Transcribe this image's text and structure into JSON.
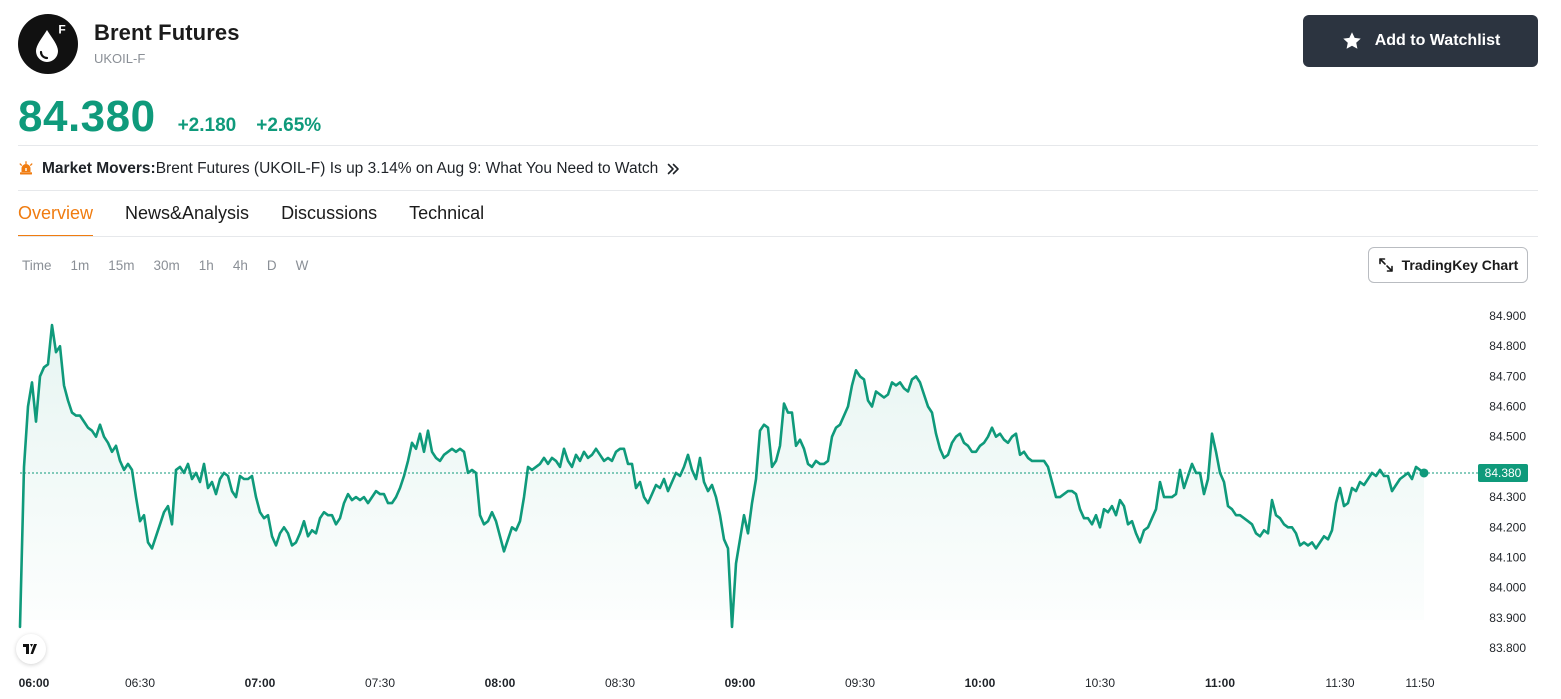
{
  "header": {
    "logo_letter": "F",
    "title": "Brent Futures",
    "ticker": "UKOIL-F",
    "watchlist_label": "Add to Watchlist"
  },
  "quote": {
    "price": "84.380",
    "change": "+2.180",
    "change_pct": "+2.65%"
  },
  "movers": {
    "label": "Market Movers:",
    "text": "Brent Futures (UKOIL-F) Is up 3.14% on Aug 9: What You Need to Watch"
  },
  "tabs": [
    {
      "label": "Overview",
      "active": true
    },
    {
      "label": "News&Analysis",
      "active": false
    },
    {
      "label": "Discussions",
      "active": false
    },
    {
      "label": "Technical",
      "active": false
    }
  ],
  "intervals": [
    "Time",
    "1m",
    "15m",
    "30m",
    "1h",
    "4h",
    "D",
    "W"
  ],
  "chart_button_label": "TradingKey Chart",
  "colors": {
    "accent_green": "#0f9a7b",
    "tab_active": "#f07c10",
    "button_dark": "#2c3440"
  },
  "chart_data": {
    "type": "area",
    "last_value": 84.38,
    "last_value_label": "84.380",
    "ylim": [
      83.8,
      84.9
    ],
    "y_ticks": [
      "84.900",
      "84.800",
      "84.700",
      "84.600",
      "84.500",
      "84.400",
      "84.300",
      "84.200",
      "84.100",
      "84.000",
      "83.900",
      "83.800"
    ],
    "x_ticks": [
      {
        "label": "06:00",
        "t": 0,
        "major": true
      },
      {
        "label": "06:30",
        "t": 30,
        "major": false
      },
      {
        "label": "07:00",
        "t": 60,
        "major": true
      },
      {
        "label": "07:30",
        "t": 90,
        "major": false
      },
      {
        "label": "08:00",
        "t": 120,
        "major": true
      },
      {
        "label": "08:30",
        "t": 150,
        "major": false
      },
      {
        "label": "09:00",
        "t": 180,
        "major": true
      },
      {
        "label": "09:30",
        "t": 210,
        "major": false
      },
      {
        "label": "10:00",
        "t": 240,
        "major": true
      },
      {
        "label": "10:30",
        "t": 270,
        "major": false
      },
      {
        "label": "11:00",
        "t": 300,
        "major": true
      },
      {
        "label": "11:30",
        "t": 330,
        "major": false
      },
      {
        "label": "11:50",
        "t": 350,
        "major": false
      }
    ],
    "x_range_minutes": [
      0,
      372
    ],
    "points": [
      [
        0,
        83.87
      ],
      [
        1,
        84.4
      ],
      [
        2,
        84.6
      ],
      [
        3,
        84.68
      ],
      [
        4,
        84.55
      ],
      [
        5,
        84.7
      ],
      [
        6,
        84.73
      ],
      [
        7,
        84.74
      ],
      [
        8,
        84.87
      ],
      [
        9,
        84.78
      ],
      [
        10,
        84.8
      ],
      [
        11,
        84.67
      ],
      [
        12,
        84.62
      ],
      [
        13,
        84.58
      ],
      [
        14,
        84.57
      ],
      [
        15,
        84.57
      ],
      [
        16,
        84.55
      ],
      [
        17,
        84.53
      ],
      [
        18,
        84.52
      ],
      [
        19,
        84.5
      ],
      [
        20,
        84.54
      ],
      [
        21,
        84.5
      ],
      [
        22,
        84.48
      ],
      [
        23,
        84.45
      ],
      [
        24,
        84.47
      ],
      [
        25,
        84.42
      ],
      [
        26,
        84.39
      ],
      [
        27,
        84.41
      ],
      [
        28,
        84.39
      ],
      [
        29,
        84.3
      ],
      [
        30,
        84.22
      ],
      [
        31,
        84.24
      ],
      [
        32,
        84.15
      ],
      [
        33,
        84.13
      ],
      [
        34,
        84.17
      ],
      [
        35,
        84.21
      ],
      [
        36,
        84.25
      ],
      [
        37,
        84.27
      ],
      [
        38,
        84.21
      ],
      [
        39,
        84.39
      ],
      [
        40,
        84.4
      ],
      [
        41,
        84.38
      ],
      [
        42,
        84.41
      ],
      [
        43,
        84.36
      ],
      [
        44,
        84.38
      ],
      [
        45,
        84.35
      ],
      [
        46,
        84.41
      ],
      [
        47,
        84.33
      ],
      [
        48,
        84.35
      ],
      [
        49,
        84.31
      ],
      [
        50,
        84.36
      ],
      [
        51,
        84.38
      ],
      [
        52,
        84.37
      ],
      [
        53,
        84.32
      ],
      [
        54,
        84.3
      ],
      [
        55,
        84.37
      ],
      [
        56,
        84.36
      ],
      [
        57,
        84.36
      ],
      [
        58,
        84.37
      ],
      [
        59,
        84.3
      ],
      [
        60,
        84.25
      ],
      [
        61,
        84.23
      ],
      [
        62,
        84.24
      ],
      [
        63,
        84.17
      ],
      [
        64,
        84.14
      ],
      [
        65,
        84.18
      ],
      [
        66,
        84.2
      ],
      [
        67,
        84.18
      ],
      [
        68,
        84.14
      ],
      [
        69,
        84.15
      ],
      [
        70,
        84.18
      ],
      [
        71,
        84.22
      ],
      [
        72,
        84.17
      ],
      [
        73,
        84.19
      ],
      [
        74,
        84.18
      ],
      [
        75,
        84.23
      ],
      [
        76,
        84.25
      ],
      [
        77,
        84.24
      ],
      [
        78,
        84.24
      ],
      [
        79,
        84.21
      ],
      [
        80,
        84.23
      ],
      [
        81,
        84.28
      ],
      [
        82,
        84.31
      ],
      [
        83,
        84.29
      ],
      [
        84,
        84.3
      ],
      [
        85,
        84.29
      ],
      [
        86,
        84.3
      ],
      [
        87,
        84.28
      ],
      [
        88,
        84.3
      ],
      [
        89,
        84.32
      ],
      [
        90,
        84.31
      ],
      [
        91,
        84.31
      ],
      [
        92,
        84.28
      ],
      [
        93,
        84.28
      ],
      [
        94,
        84.3
      ],
      [
        95,
        84.33
      ],
      [
        96,
        84.37
      ],
      [
        97,
        84.42
      ],
      [
        98,
        84.48
      ],
      [
        99,
        84.46
      ],
      [
        100,
        84.51
      ],
      [
        101,
        84.45
      ],
      [
        102,
        84.52
      ],
      [
        103,
        84.45
      ],
      [
        104,
        84.43
      ],
      [
        105,
        84.42
      ],
      [
        106,
        84.44
      ],
      [
        107,
        84.45
      ],
      [
        108,
        84.46
      ],
      [
        109,
        84.45
      ],
      [
        110,
        84.46
      ],
      [
        111,
        84.45
      ],
      [
        112,
        84.38
      ],
      [
        113,
        84.39
      ],
      [
        114,
        84.38
      ],
      [
        115,
        84.24
      ],
      [
        116,
        84.21
      ],
      [
        117,
        84.22
      ],
      [
        118,
        84.25
      ],
      [
        119,
        84.22
      ],
      [
        120,
        84.17
      ],
      [
        121,
        84.12
      ],
      [
        122,
        84.16
      ],
      [
        123,
        84.2
      ],
      [
        124,
        84.19
      ],
      [
        125,
        84.22
      ],
      [
        126,
        84.3
      ],
      [
        127,
        84.4
      ],
      [
        128,
        84.39
      ],
      [
        129,
        84.4
      ],
      [
        130,
        84.41
      ],
      [
        131,
        84.43
      ],
      [
        132,
        84.41
      ],
      [
        133,
        84.43
      ],
      [
        134,
        84.42
      ],
      [
        135,
        84.4
      ],
      [
        136,
        84.46
      ],
      [
        137,
        84.42
      ],
      [
        138,
        84.4
      ],
      [
        139,
        84.44
      ],
      [
        140,
        84.42
      ],
      [
        141,
        84.45
      ],
      [
        142,
        84.43
      ],
      [
        143,
        84.44
      ],
      [
        144,
        84.46
      ],
      [
        145,
        84.44
      ],
      [
        146,
        84.42
      ],
      [
        147,
        84.43
      ],
      [
        148,
        84.42
      ],
      [
        149,
        84.45
      ],
      [
        150,
        84.46
      ],
      [
        151,
        84.46
      ],
      [
        152,
        84.41
      ],
      [
        153,
        84.41
      ],
      [
        154,
        84.33
      ],
      [
        155,
        84.35
      ],
      [
        156,
        84.3
      ],
      [
        157,
        84.28
      ],
      [
        158,
        84.31
      ],
      [
        159,
        84.34
      ],
      [
        160,
        84.33
      ],
      [
        161,
        84.36
      ],
      [
        162,
        84.32
      ],
      [
        163,
        84.35
      ],
      [
        164,
        84.38
      ],
      [
        165,
        84.37
      ],
      [
        166,
        84.4
      ],
      [
        167,
        84.44
      ],
      [
        168,
        84.39
      ],
      [
        169,
        84.36
      ],
      [
        170,
        84.43
      ],
      [
        171,
        84.35
      ],
      [
        172,
        84.32
      ],
      [
        173,
        84.34
      ],
      [
        174,
        84.3
      ],
      [
        175,
        84.24
      ],
      [
        176,
        84.16
      ],
      [
        177,
        84.13
      ],
      [
        178,
        83.87
      ],
      [
        179,
        84.08
      ],
      [
        180,
        84.16
      ],
      [
        181,
        84.24
      ],
      [
        182,
        84.18
      ],
      [
        183,
        84.28
      ],
      [
        184,
        84.36
      ],
      [
        185,
        84.52
      ],
      [
        186,
        84.54
      ],
      [
        187,
        84.53
      ],
      [
        188,
        84.4
      ],
      [
        189,
        84.42
      ],
      [
        190,
        84.47
      ],
      [
        191,
        84.61
      ],
      [
        192,
        84.58
      ],
      [
        193,
        84.58
      ],
      [
        194,
        84.47
      ],
      [
        195,
        84.49
      ],
      [
        196,
        84.46
      ],
      [
        197,
        84.41
      ],
      [
        198,
        84.4
      ],
      [
        199,
        84.42
      ],
      [
        200,
        84.41
      ],
      [
        201,
        84.41
      ],
      [
        202,
        84.42
      ],
      [
        203,
        84.5
      ],
      [
        204,
        84.53
      ],
      [
        205,
        84.54
      ],
      [
        206,
        84.57
      ],
      [
        207,
        84.6
      ],
      [
        208,
        84.67
      ],
      [
        209,
        84.72
      ],
      [
        210,
        84.7
      ],
      [
        211,
        84.69
      ],
      [
        212,
        84.62
      ],
      [
        213,
        84.6
      ],
      [
        214,
        84.65
      ],
      [
        215,
        84.64
      ],
      [
        216,
        84.63
      ],
      [
        217,
        84.64
      ],
      [
        218,
        84.68
      ],
      [
        219,
        84.67
      ],
      [
        220,
        84.68
      ],
      [
        221,
        84.66
      ],
      [
        222,
        84.65
      ],
      [
        223,
        84.69
      ],
      [
        224,
        84.7
      ],
      [
        225,
        84.68
      ],
      [
        226,
        84.64
      ],
      [
        227,
        84.6
      ],
      [
        228,
        84.58
      ],
      [
        229,
        84.51
      ],
      [
        230,
        84.46
      ],
      [
        231,
        84.43
      ],
      [
        232,
        84.44
      ],
      [
        233,
        84.48
      ],
      [
        234,
        84.5
      ],
      [
        235,
        84.51
      ],
      [
        236,
        84.48
      ],
      [
        237,
        84.47
      ],
      [
        238,
        84.45
      ],
      [
        239,
        84.45
      ],
      [
        240,
        84.47
      ],
      [
        241,
        84.48
      ],
      [
        242,
        84.5
      ],
      [
        243,
        84.53
      ],
      [
        244,
        84.5
      ],
      [
        245,
        84.51
      ],
      [
        246,
        84.49
      ],
      [
        247,
        84.48
      ],
      [
        248,
        84.5
      ],
      [
        249,
        84.51
      ],
      [
        250,
        84.44
      ],
      [
        251,
        84.45
      ],
      [
        252,
        84.43
      ],
      [
        253,
        84.42
      ],
      [
        254,
        84.42
      ],
      [
        255,
        84.42
      ],
      [
        256,
        84.42
      ],
      [
        257,
        84.4
      ],
      [
        258,
        84.35
      ],
      [
        259,
        84.3
      ],
      [
        260,
        84.3
      ],
      [
        261,
        84.31
      ],
      [
        262,
        84.32
      ],
      [
        263,
        84.32
      ],
      [
        264,
        84.31
      ],
      [
        265,
        84.26
      ],
      [
        266,
        84.23
      ],
      [
        267,
        84.23
      ],
      [
        268,
        84.21
      ],
      [
        269,
        84.24
      ],
      [
        270,
        84.2
      ],
      [
        271,
        84.26
      ],
      [
        272,
        84.25
      ],
      [
        273,
        84.27
      ],
      [
        274,
        84.24
      ],
      [
        275,
        84.29
      ],
      [
        276,
        84.27
      ],
      [
        277,
        84.21
      ],
      [
        278,
        84.22
      ],
      [
        279,
        84.18
      ],
      [
        280,
        84.15
      ],
      [
        281,
        84.19
      ],
      [
        282,
        84.2
      ],
      [
        283,
        84.23
      ],
      [
        284,
        84.26
      ],
      [
        285,
        84.35
      ],
      [
        286,
        84.3
      ],
      [
        287,
        84.3
      ],
      [
        288,
        84.3
      ],
      [
        289,
        84.31
      ],
      [
        290,
        84.39
      ],
      [
        291,
        84.33
      ],
      [
        292,
        84.37
      ],
      [
        293,
        84.41
      ],
      [
        294,
        84.38
      ],
      [
        295,
        84.38
      ],
      [
        296,
        84.31
      ],
      [
        297,
        84.36
      ],
      [
        298,
        84.51
      ],
      [
        299,
        84.45
      ],
      [
        300,
        84.38
      ],
      [
        301,
        84.35
      ],
      [
        302,
        84.27
      ],
      [
        303,
        84.26
      ],
      [
        304,
        84.24
      ],
      [
        305,
        84.24
      ],
      [
        306,
        84.23
      ],
      [
        307,
        84.22
      ],
      [
        308,
        84.21
      ],
      [
        309,
        84.18
      ],
      [
        310,
        84.17
      ],
      [
        311,
        84.19
      ],
      [
        312,
        84.18
      ],
      [
        313,
        84.29
      ],
      [
        314,
        84.24
      ],
      [
        315,
        84.23
      ],
      [
        316,
        84.21
      ],
      [
        317,
        84.2
      ],
      [
        318,
        84.2
      ],
      [
        319,
        84.18
      ],
      [
        320,
        84.14
      ],
      [
        321,
        84.15
      ],
      [
        322,
        84.14
      ],
      [
        323,
        84.15
      ],
      [
        324,
        84.13
      ],
      [
        325,
        84.15
      ],
      [
        326,
        84.17
      ],
      [
        327,
        84.16
      ],
      [
        328,
        84.19
      ],
      [
        329,
        84.28
      ],
      [
        330,
        84.33
      ],
      [
        331,
        84.27
      ],
      [
        332,
        84.28
      ],
      [
        333,
        84.33
      ],
      [
        334,
        84.32
      ],
      [
        335,
        84.35
      ],
      [
        336,
        84.34
      ],
      [
        337,
        84.36
      ],
      [
        338,
        84.38
      ],
      [
        339,
        84.37
      ],
      [
        340,
        84.39
      ],
      [
        341,
        84.37
      ],
      [
        342,
        84.37
      ],
      [
        343,
        84.32
      ],
      [
        344,
        84.34
      ],
      [
        345,
        84.36
      ],
      [
        346,
        84.37
      ],
      [
        347,
        84.38
      ],
      [
        348,
        84.36
      ],
      [
        349,
        84.4
      ],
      [
        350,
        84.39
      ],
      [
        351,
        84.38
      ]
    ]
  }
}
